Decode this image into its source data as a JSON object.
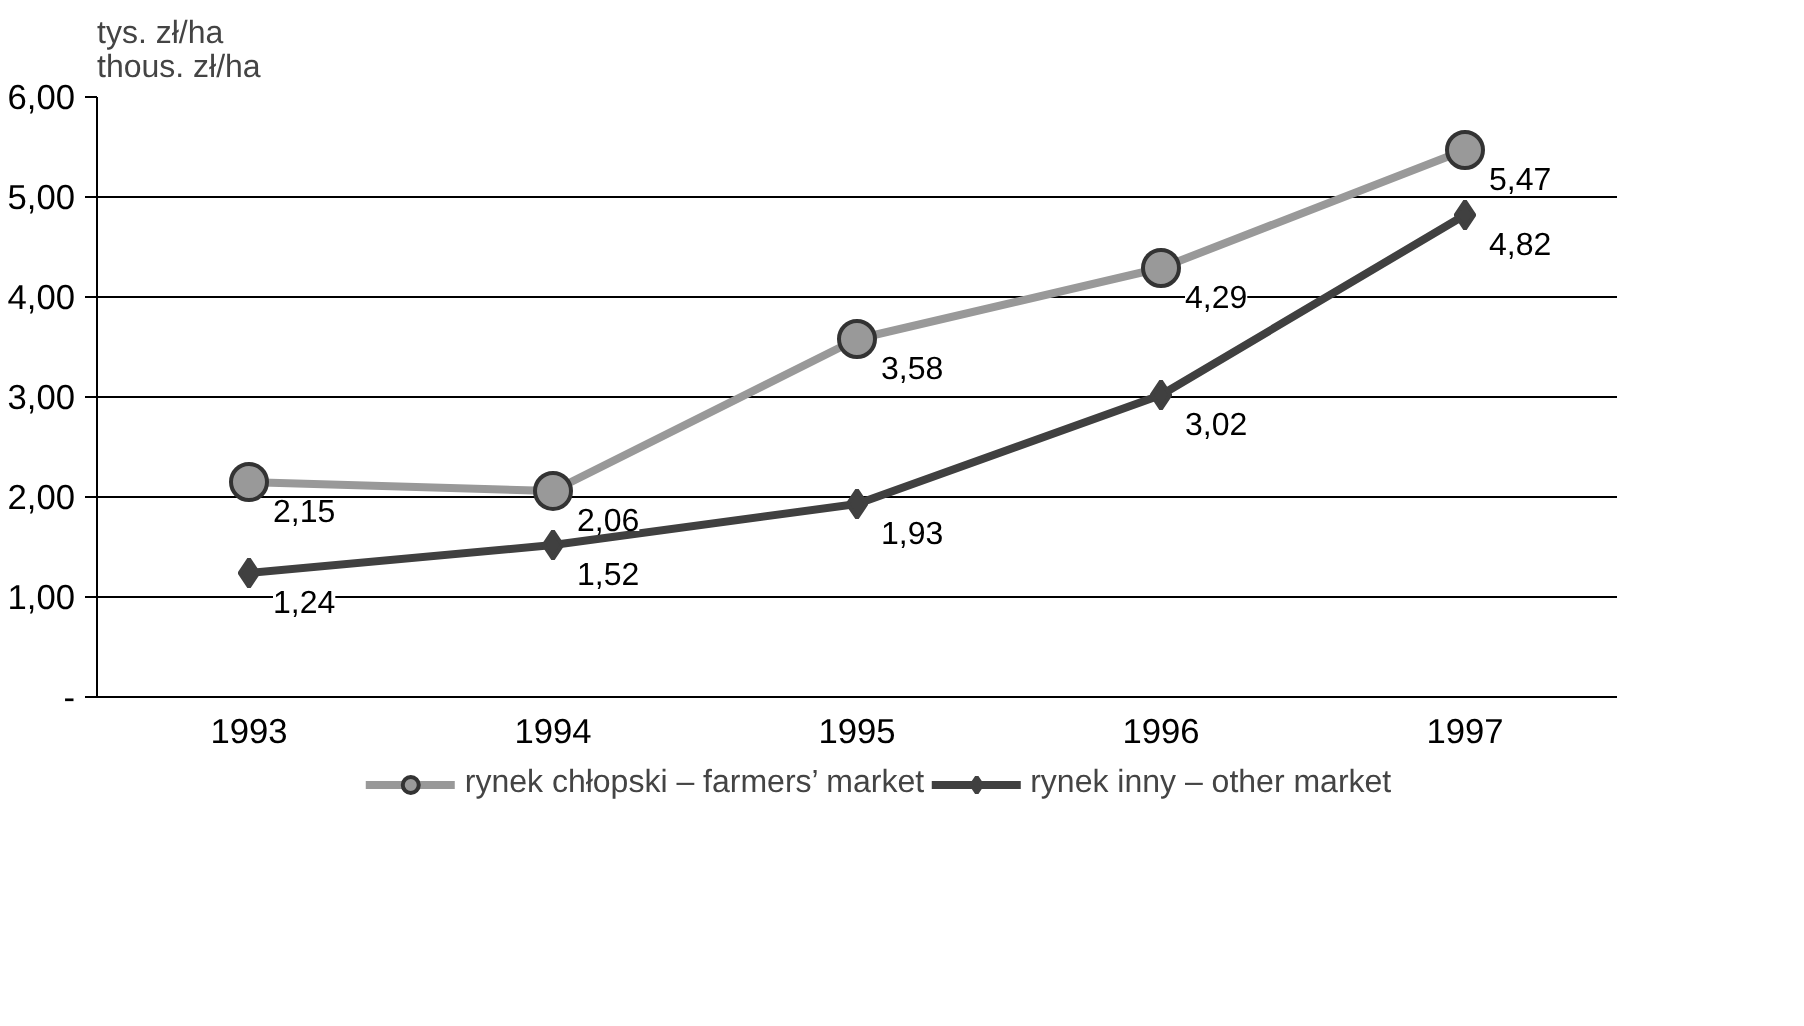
{
  "chart_data": {
    "type": "line",
    "ylabel": "tys. zł/ha\nthous. zł/ha",
    "categories": [
      "1993",
      "1994",
      "1995",
      "1996",
      "1997"
    ],
    "ylim": [
      0,
      6
    ],
    "yticks": [
      {
        "value": 0,
        "label": "-"
      },
      {
        "value": 1,
        "label": "1,00"
      },
      {
        "value": 2,
        "label": "2,00"
      },
      {
        "value": 3,
        "label": "3,00"
      },
      {
        "value": 4,
        "label": "4,00"
      },
      {
        "value": 5,
        "label": "5,00"
      },
      {
        "value": 6,
        "label": "6,00"
      }
    ],
    "grid": "y",
    "legend": "bottom",
    "series": [
      {
        "name": "rynek chłopski – farmers’ market",
        "color": "#999999",
        "marker": "circle",
        "values": [
          2.15,
          2.06,
          3.58,
          4.29,
          5.47
        ],
        "value_labels": [
          "2,15",
          "2,06",
          "3,58",
          "4,29",
          "5,47"
        ]
      },
      {
        "name": "rynek inny – other market",
        "color": "#404040",
        "marker": "diamond",
        "values": [
          1.24,
          1.52,
          1.93,
          3.02,
          4.82
        ],
        "value_labels": [
          "1,24",
          "1,52",
          "1,93",
          "3,02",
          "4,82"
        ]
      }
    ]
  }
}
